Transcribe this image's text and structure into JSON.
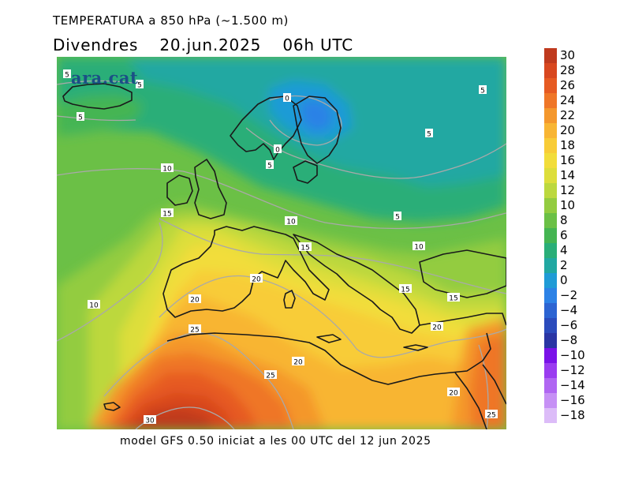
{
  "header": {
    "title": "TEMPERATURA a 850 hPa (~1.500 m)",
    "day": "Divendres",
    "date": "20.jun.2025",
    "time": "06h UTC"
  },
  "watermark": "ara.cat",
  "footer": "model GFS 0.50 iniciat a les 00 UTC del 12 jun 2025",
  "colorbar": {
    "levels": [
      {
        "label": "30",
        "color": "#bf3a1e"
      },
      {
        "label": "28",
        "color": "#d8471f"
      },
      {
        "label": "26",
        "color": "#e65a22"
      },
      {
        "label": "24",
        "color": "#ef7627"
      },
      {
        "label": "22",
        "color": "#f4972c"
      },
      {
        "label": "20",
        "color": "#f8b533"
      },
      {
        "label": "18",
        "color": "#f8cc37"
      },
      {
        "label": "16",
        "color": "#f2dd3a"
      },
      {
        "label": "14",
        "color": "#ddde3b"
      },
      {
        "label": "12",
        "color": "#bcd83e"
      },
      {
        "label": "10",
        "color": "#93cc40"
      },
      {
        "label": "8",
        "color": "#6bc046"
      },
      {
        "label": "6",
        "color": "#45b552"
      },
      {
        "label": "4",
        "color": "#2aae78"
      },
      {
        "label": "2",
        "color": "#21a8a2"
      },
      {
        "label": "0",
        "color": "#1f9bd6"
      },
      {
        "label": "−2",
        "color": "#2c82e6"
      },
      {
        "label": "−4",
        "color": "#2c64d2"
      },
      {
        "label": "−6",
        "color": "#2b4bbc"
      },
      {
        "label": "−8",
        "color": "#2a35a4"
      },
      {
        "label": "−10",
        "color": "#7a12e8"
      },
      {
        "label": "−12",
        "color": "#9a3cf0"
      },
      {
        "label": "−14",
        "color": "#b066f2"
      },
      {
        "label": "−16",
        "color": "#c690f5"
      },
      {
        "label": "−18",
        "color": "#dcbcf8"
      }
    ]
  },
  "contour_labels": [
    "5",
    "5",
    "5",
    "0",
    "0",
    "5",
    "5",
    "5",
    "10",
    "15",
    "10",
    "5",
    "15",
    "10",
    "20",
    "20",
    "25",
    "10",
    "15",
    "15",
    "20",
    "20",
    "25",
    "20",
    "30",
    "25"
  ]
}
